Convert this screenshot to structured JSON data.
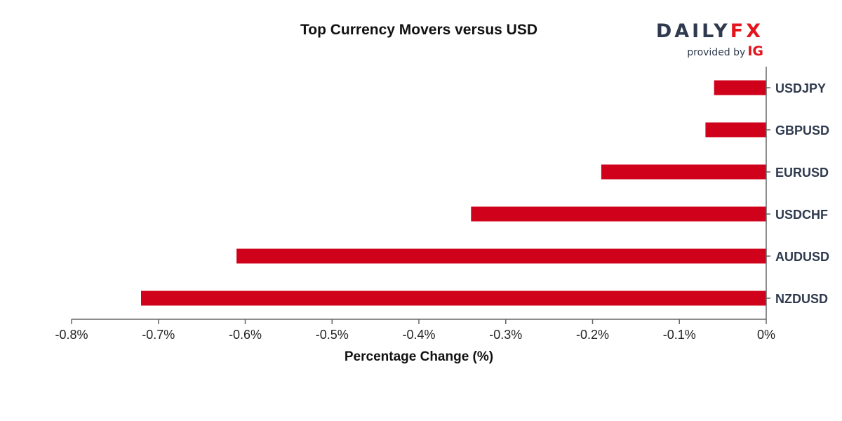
{
  "header": {
    "title": "Top Currency Movers versus USD"
  },
  "logo": {
    "brand_daily": "DAILY",
    "brand_fx": "FX",
    "provided_by": "provided by",
    "provider": "IG",
    "colors": {
      "dark": "#2f3a4e",
      "red": "#e3141c"
    }
  },
  "chart_data": {
    "type": "bar",
    "orientation": "horizontal",
    "title": "Top Currency Movers versus USD",
    "xlabel": "Percentage Change (%)",
    "ylabel": "",
    "categories": [
      "USDJPY",
      "GBPUSD",
      "EURUSD",
      "USDCHF",
      "AUDUSD",
      "NZDUSD"
    ],
    "values": [
      -0.06,
      -0.07,
      -0.19,
      -0.34,
      -0.61,
      -0.72
    ],
    "xlim": [
      -0.8,
      0
    ],
    "x_ticks": [
      -0.8,
      -0.7,
      -0.6,
      -0.5,
      -0.4,
      -0.3,
      -0.2,
      -0.1,
      0
    ],
    "x_tick_labels": [
      "-0.8%",
      "-0.7%",
      "-0.6%",
      "-0.5%",
      "-0.4%",
      "-0.3%",
      "-0.2%",
      "-0.1%",
      "0%"
    ],
    "bar_color": "#d0021b",
    "axis_color": "#666666",
    "grid": false,
    "legend": "none",
    "category_labels_side": "right"
  }
}
